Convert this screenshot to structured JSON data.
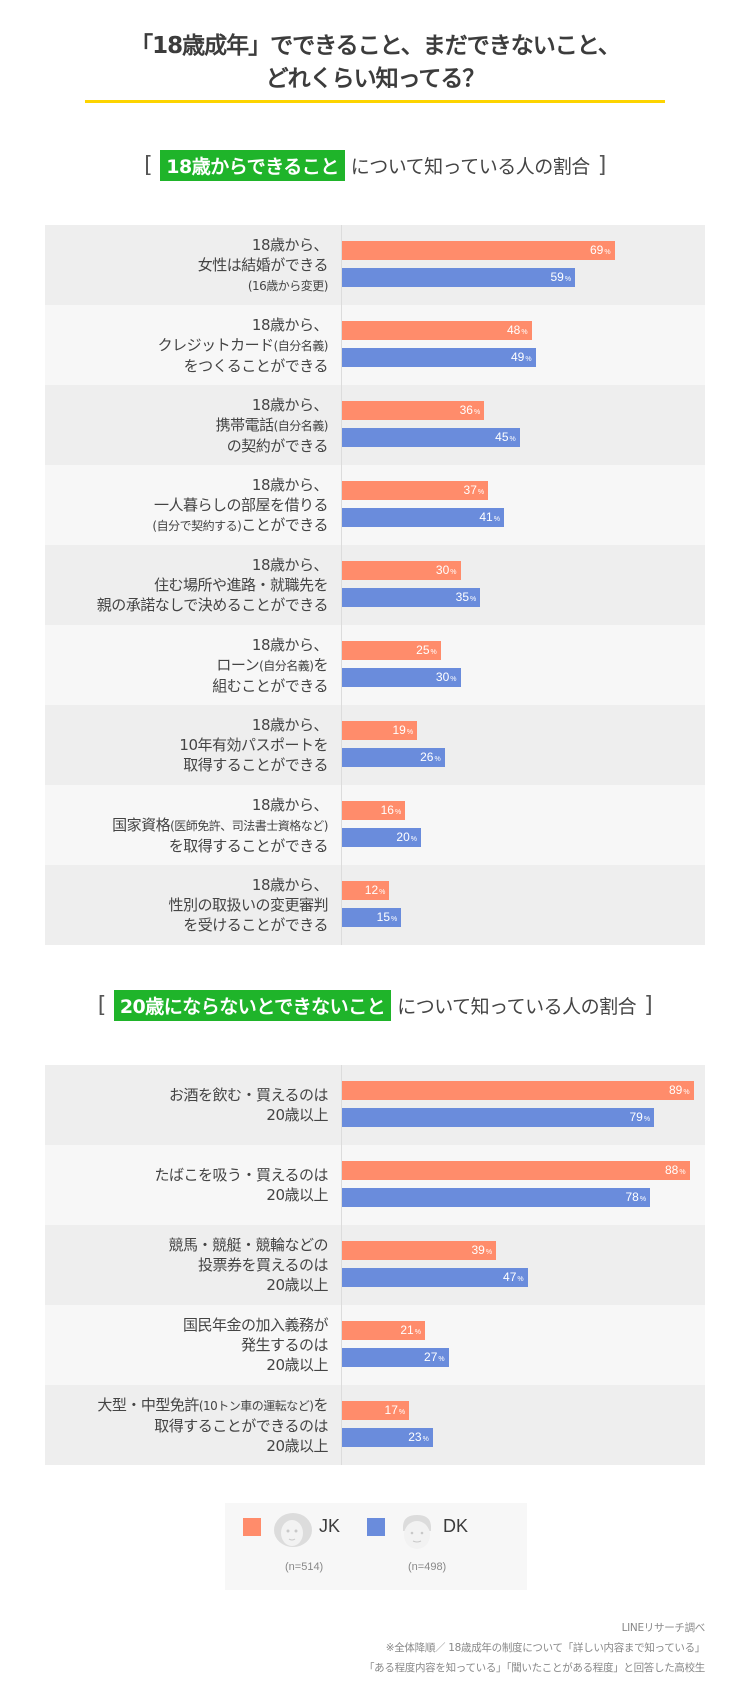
{
  "title": {
    "line1": "「18歳成年」でできること、まだできないこと、",
    "line2": "どれくらい知ってる？"
  },
  "colors": {
    "JK": "#ff8c6b",
    "DK": "#6a8cdc",
    "highlight": "#1fb42a",
    "rule": "#fdd400"
  },
  "sections": [
    {
      "bracket_open": "[",
      "highlight": "18歳からできること",
      "rest": "について知っている人の割合",
      "bracket_close": "]"
    },
    {
      "bracket_open": "[",
      "highlight": "20歳にならないとできないこと",
      "rest": "について知っている人の割合",
      "bracket_close": "]"
    }
  ],
  "legend": {
    "JK": {
      "label": "JK",
      "n": "(n=514)",
      "icon": "girl-face-icon"
    },
    "DK": {
      "label": "DK",
      "n": "(n=498)",
      "icon": "boy-face-icon"
    }
  },
  "footnote": {
    "line1": "LINEリサーチ調べ",
    "line2": "※全体降順／ 18歳成年の制度について「詳しい内容まで知っている」",
    "line3": "「ある程度内容を知っている」「聞いたことがある程度」と回答した高校生"
  },
  "chart_data": [
    {
      "type": "bar",
      "orientation": "horizontal",
      "title": "18歳からできることについて知っている人の割合",
      "unit": "%",
      "categories": [
        "18歳から、女性は結婚ができる（16歳から変更）",
        "18歳から、クレジットカード（自分名義）をつくることができる",
        "18歳から、携帯電話（自分名義）の契約ができる",
        "18歳から、一人暮らしの部屋を借りる（自分で契約する）ことができる",
        "18歳から、住む場所や進路・就職先を親の承諾なしで決めることができる",
        "18歳から、ローン（自分名義）を組むことができる",
        "18歳から、10年有効パスポートを取得することができる",
        "18歳から、国家資格（医師免許、司法書士資格など）を取得することができる",
        "18歳から、性別の取扱いの変更審判を受けることができる"
      ],
      "label_lines": [
        [
          [
            "18歳から、"
          ],
          [
            "女性は結婚ができる"
          ],
          [
            "",
            "(16歳から変更)"
          ]
        ],
        [
          [
            "18歳から、"
          ],
          [
            "クレジットカード",
            "(自分名義)"
          ],
          [
            "をつくることができる"
          ]
        ],
        [
          [
            "18歳から、"
          ],
          [
            "携帯電話",
            "(自分名義)"
          ],
          [
            "の契約ができる"
          ]
        ],
        [
          [
            "18歳から、"
          ],
          [
            "一人暮らしの部屋を借りる"
          ],
          [
            "",
            "(自分で契約する)",
            "ことができる"
          ]
        ],
        [
          [
            "18歳から、"
          ],
          [
            "住む場所や進路・就職先を"
          ],
          [
            "親の承諾なしで決めることができる"
          ]
        ],
        [
          [
            "18歳から、"
          ],
          [
            "ローン",
            "(自分名義)",
            "を"
          ],
          [
            "組むことができる"
          ]
        ],
        [
          [
            "18歳から、"
          ],
          [
            "10年有効パスポートを"
          ],
          [
            "取得することができる"
          ]
        ],
        [
          [
            "18歳から、"
          ],
          [
            "国家資格",
            "(医師免許、司法書士資格など)"
          ],
          [
            "を取得することができる"
          ]
        ],
        [
          [
            "18歳から、"
          ],
          [
            "性別の取扱いの変更審判"
          ],
          [
            "を受けることができる"
          ]
        ]
      ],
      "series": [
        {
          "name": "JK",
          "values": [
            69,
            48,
            36,
            37,
            30,
            25,
            19,
            16,
            12
          ]
        },
        {
          "name": "DK",
          "values": [
            59,
            49,
            45,
            41,
            35,
            30,
            26,
            20,
            15
          ]
        }
      ],
      "xlim": [
        0,
        100
      ],
      "grid": false,
      "legend_position": "bottom"
    },
    {
      "type": "bar",
      "orientation": "horizontal",
      "title": "20歳にならないとできないことについて知っている人の割合",
      "unit": "%",
      "categories": [
        "お酒を飲む・買えるのは20歳以上",
        "たばこを吸う・買えるのは20歳以上",
        "競馬・競艇・競輪などの投票券を買えるのは20歳以上",
        "国民年金の加入義務が発生するのは20歳以上",
        "大型・中型免許（10トン車の運転など）を取得することができるのは20歳以上"
      ],
      "label_lines": [
        [
          [
            "お酒を飲む・買えるのは"
          ],
          [
            "20歳以上"
          ]
        ],
        [
          [
            "たばこを吸う・買えるのは"
          ],
          [
            "20歳以上"
          ]
        ],
        [
          [
            "競馬・競艇・競輪などの"
          ],
          [
            "投票券を買えるのは"
          ],
          [
            "20歳以上"
          ]
        ],
        [
          [
            "国民年金の加入義務が"
          ],
          [
            "発生するのは"
          ],
          [
            "20歳以上"
          ]
        ],
        [
          [
            "大型・中型免許",
            "(10トン車の運転など)",
            "を"
          ],
          [
            "取得することができるのは"
          ],
          [
            "20歳以上"
          ]
        ]
      ],
      "series": [
        {
          "name": "JK",
          "values": [
            89,
            88,
            39,
            21,
            17
          ]
        },
        {
          "name": "DK",
          "values": [
            79,
            78,
            47,
            27,
            23
          ]
        }
      ],
      "xlim": [
        0,
        100
      ],
      "grid": false,
      "legend_position": "bottom"
    }
  ]
}
